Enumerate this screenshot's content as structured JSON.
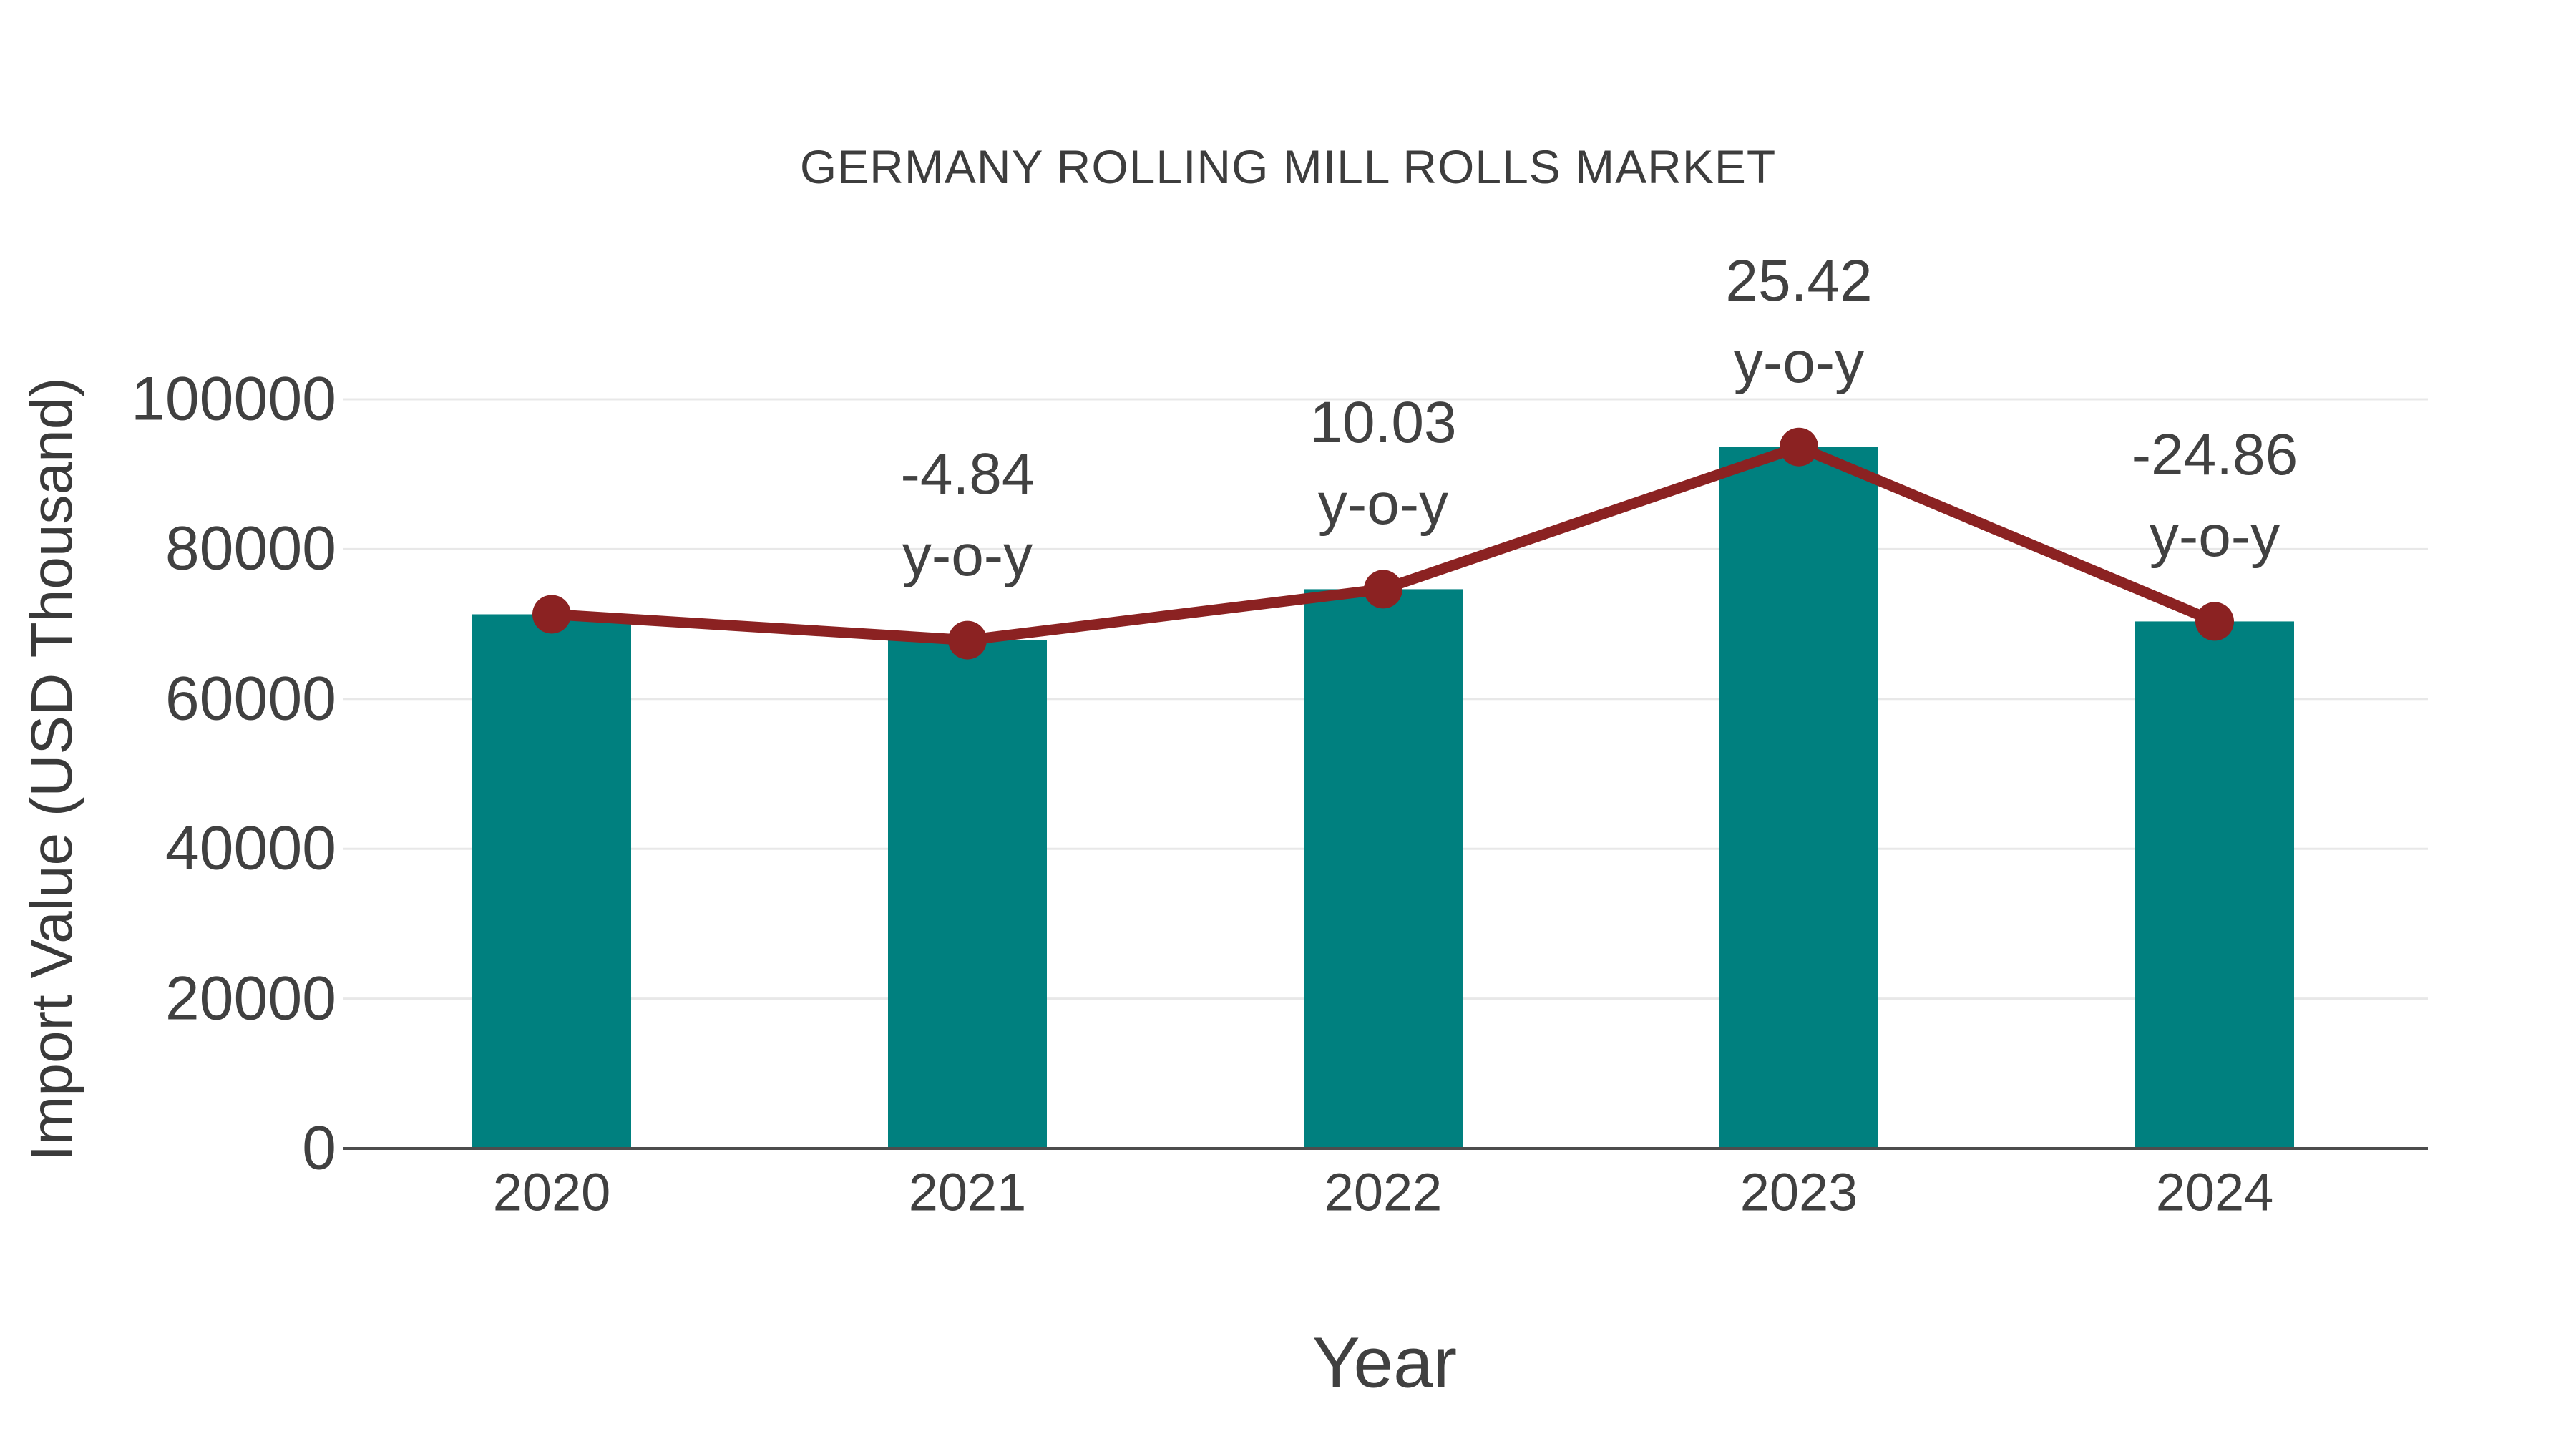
{
  "chart_data": {
    "type": "bar",
    "title": "GERMANY ROLLING MILL ROLLS MARKET",
    "xlabel": "Year",
    "ylabel": "Import Value (USD Thousand)",
    "categories": [
      "2020",
      "2021",
      "2022",
      "2023",
      "2024"
    ],
    "series": [
      {
        "name": "Import Value (USD Thousand)",
        "type": "bar",
        "color": "#00807F",
        "values": [
          71300,
          67850,
          74650,
          93630,
          70350
        ]
      },
      {
        "name": "y-o-y",
        "type": "line",
        "color": "#8B2222",
        "plotted_on": "bar_tops",
        "yoy_percent": [
          null,
          -4.84,
          10.03,
          25.42,
          -24.86
        ]
      }
    ],
    "annotations": [
      {
        "category": "2021",
        "line1": "-4.84",
        "line2": "y-o-y"
      },
      {
        "category": "2022",
        "line1": "10.03",
        "line2": "y-o-y"
      },
      {
        "category": "2023",
        "line1": "25.42",
        "line2": "y-o-y"
      },
      {
        "category": "2024",
        "line1": "-24.86",
        "line2": "y-o-y"
      }
    ],
    "ylim": [
      0,
      100000
    ],
    "yticks": [
      "0",
      "20000",
      "40000",
      "60000",
      "80000",
      "100000"
    ],
    "grid": "horizontal",
    "legend": "none",
    "colors": {
      "bar": "#00807F",
      "line": "#8B2222",
      "marker": "#8B2222",
      "text": "#404040",
      "gridline": "#E8E8E8",
      "axis_line": "#4D4D4D",
      "background": "#FFFFFF"
    }
  }
}
